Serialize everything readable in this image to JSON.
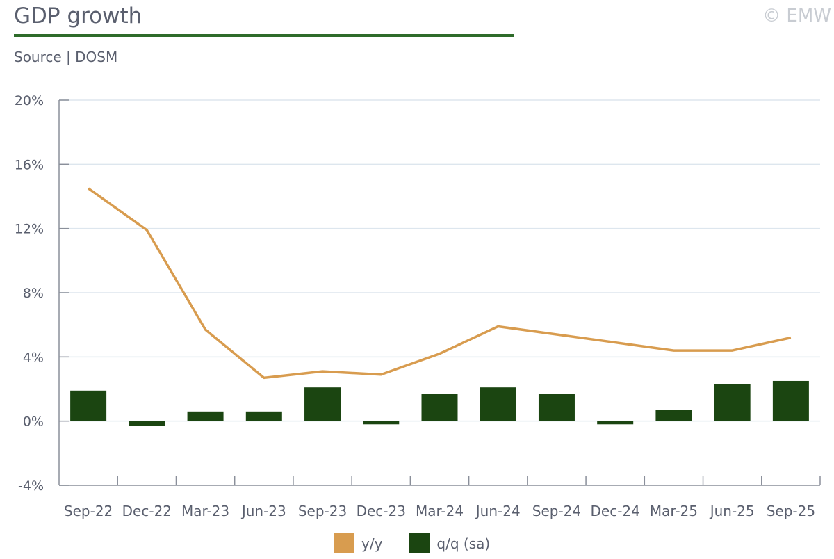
{
  "chart_data": {
    "type": "bar-line",
    "title": "GDP growth",
    "subtitle": "Source | DOSM",
    "copyright": "© EMW",
    "categories": [
      "Sep-22",
      "Dec-22",
      "Mar-23",
      "Jun-23",
      "Sep-23",
      "Dec-23",
      "Mar-24",
      "Jun-24",
      "Sep-24",
      "Dec-24",
      "Mar-25",
      "Jun-25",
      "Sep-25"
    ],
    "series": [
      {
        "name": "y/y",
        "type": "line",
        "color": "#d89c4f",
        "values": [
          14.5,
          11.9,
          5.7,
          2.7,
          3.1,
          2.9,
          4.2,
          5.9,
          5.4,
          4.9,
          4.4,
          4.4,
          5.2
        ]
      },
      {
        "name": "q/q (sa)",
        "type": "bar",
        "color": "#1b4511",
        "values": [
          1.9,
          -0.3,
          0.6,
          0.6,
          2.1,
          -0.2,
          1.7,
          2.1,
          1.7,
          -0.2,
          0.7,
          2.3,
          2.5
        ]
      }
    ],
    "ylim": [
      -4,
      20
    ],
    "yticks": [
      {
        "value": -4,
        "label": "-4%"
      },
      {
        "value": 0,
        "label": "0%"
      },
      {
        "value": 4,
        "label": "4%"
      },
      {
        "value": 8,
        "label": "8%"
      },
      {
        "value": 12,
        "label": "12%"
      },
      {
        "value": 16,
        "label": "16%"
      },
      {
        "value": 20,
        "label": "20%"
      }
    ],
    "grid": true,
    "legend": "bottom"
  }
}
